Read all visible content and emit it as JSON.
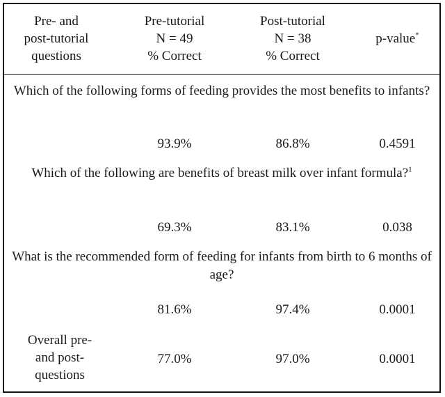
{
  "table": {
    "headers": {
      "question_col": [
        "Pre- and",
        "post-tutorial",
        "questions"
      ],
      "pre_col": [
        "Pre-tutorial",
        "N = 49",
        "% Correct"
      ],
      "post_col": [
        "Post-tutorial",
        "N = 38",
        "% Correct"
      ],
      "pvalue_col": "p-value",
      "pvalue_marker": "*"
    },
    "rows": [
      {
        "question": "Which of the following forms of feeding provides the most benefits to infants?",
        "question_marker": "",
        "pre": "93.9%",
        "post": "86.8%",
        "p_value": "0.4591"
      },
      {
        "question": "Which of the following are benefits of breast milk over infant formula?",
        "question_marker": "1",
        "pre": "69.3%",
        "post": "83.1%",
        "p_value": "0.038"
      },
      {
        "question": "What is the recommended form of feeding for infants from birth to 6 months of age?",
        "question_marker": "",
        "pre": "81.6%",
        "post": "97.4%",
        "p_value": "0.0001"
      }
    ],
    "overall": {
      "label": [
        "Overall pre-",
        "and post-",
        "questions"
      ],
      "pre": "77.0%",
      "post": "97.0%",
      "p_value": "0.0001"
    }
  }
}
